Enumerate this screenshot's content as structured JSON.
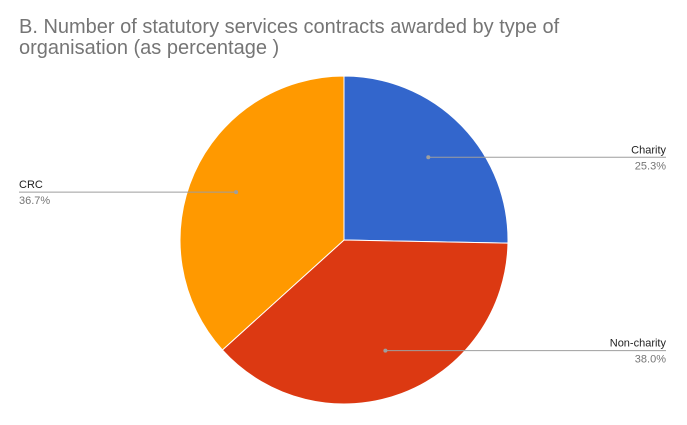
{
  "chart_data": {
    "type": "pie",
    "title": "B. Number of statutory services contracts awarded by type of organisation (as percentage )",
    "slices": [
      {
        "label": "Charity",
        "value": 25.3,
        "value_label": "25.3%",
        "color": "#3366cc",
        "label_side": "right"
      },
      {
        "label": "Non-charity",
        "value": 38.0,
        "value_label": "38.0%",
        "color": "#dc3912",
        "label_side": "right"
      },
      {
        "label": "CRC",
        "value": 36.7,
        "value_label": "36.7%",
        "color": "#ff9900",
        "label_side": "left"
      }
    ],
    "start_angle": "12 o'clock",
    "direction": "clockwise",
    "legend": "labels with leader lines"
  }
}
